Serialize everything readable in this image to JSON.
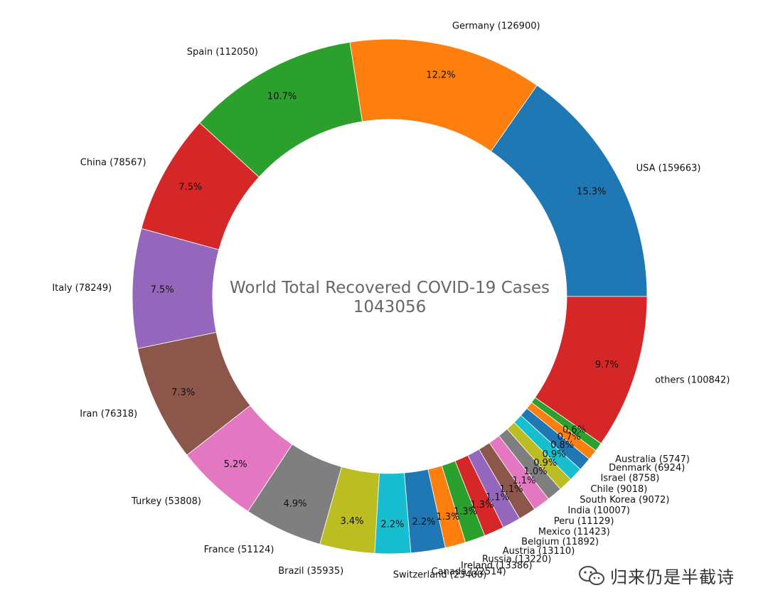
{
  "chart_data": {
    "type": "pie",
    "donut": true,
    "title": "World Total Recovered COVID-19 Cases",
    "center_value": "1043056",
    "slices": [
      {
        "name": "USA",
        "value": 159663,
        "label": "USA (159663)",
        "pct_label": "15.3%",
        "color": "#1f77b4"
      },
      {
        "name": "Germany",
        "value": 126900,
        "label": "Germany (126900)",
        "pct_label": "12.2%",
        "color": "#ff7f0e"
      },
      {
        "name": "Spain",
        "value": 112050,
        "label": "Spain (112050)",
        "pct_label": "10.7%",
        "color": "#2ca02c"
      },
      {
        "name": "China",
        "value": 78567,
        "label": "China (78567)",
        "pct_label": "7.5%",
        "color": "#d62728"
      },
      {
        "name": "Italy",
        "value": 78249,
        "label": "Italy (78249)",
        "pct_label": "7.5%",
        "color": "#9467bd"
      },
      {
        "name": "Iran",
        "value": 76318,
        "label": "Iran (76318)",
        "pct_label": "7.3%",
        "color": "#8c564b"
      },
      {
        "name": "Turkey",
        "value": 53808,
        "label": "Turkey (53808)",
        "pct_label": "5.2%",
        "color": "#e377c2"
      },
      {
        "name": "France",
        "value": 51124,
        "label": "France (51124)",
        "pct_label": "4.9%",
        "color": "#7f7f7f"
      },
      {
        "name": "Brazil",
        "value": 35935,
        "label": "Brazil (35935)",
        "pct_label": "3.4%",
        "color": "#bcbd22"
      },
      {
        "name": "Switzerland",
        "value": 23400,
        "label": "Switzerland (23400)",
        "pct_label": "2.2%",
        "color": "#17becf"
      },
      {
        "name": "Canada",
        "value": 22514,
        "label": "Canada (22514)",
        "pct_label": "2.2%",
        "color": "#1f77b4"
      },
      {
        "name": "Ireland",
        "value": 13386,
        "label": "Ireland (13386)",
        "pct_label": "1.3%",
        "color": "#ff7f0e"
      },
      {
        "name": "Russia",
        "value": 13220,
        "label": "Russia (13220)",
        "pct_label": "1.3%",
        "color": "#2ca02c"
      },
      {
        "name": "Austria",
        "value": 13110,
        "label": "Austria (13110)",
        "pct_label": "1.3%",
        "color": "#d62728"
      },
      {
        "name": "Belgium",
        "value": 11892,
        "label": "Belgium (11892)",
        "pct_label": "1.1%",
        "color": "#9467bd"
      },
      {
        "name": "Mexico",
        "value": 11423,
        "label": "Mexico (11423)",
        "pct_label": "1.1%",
        "color": "#8c564b"
      },
      {
        "name": "Peru",
        "value": 11129,
        "label": "Peru (11129)",
        "pct_label": "1.1%",
        "color": "#e377c2"
      },
      {
        "name": "India",
        "value": 10007,
        "label": "India (10007)",
        "pct_label": "1.0%",
        "color": "#7f7f7f"
      },
      {
        "name": "South Korea",
        "value": 9072,
        "label": "South Korea (9072)",
        "pct_label": "0.9%",
        "color": "#bcbd22"
      },
      {
        "name": "Chile",
        "value": 9018,
        "label": "Chile (9018)",
        "pct_label": "0.9%",
        "color": "#17becf"
      },
      {
        "name": "Israel",
        "value": 8758,
        "label": "Israel (8758)",
        "pct_label": "0.8%",
        "color": "#1f77b4"
      },
      {
        "name": "Denmark",
        "value": 6924,
        "label": "Denmark (6924)",
        "pct_label": "0.7%",
        "color": "#ff7f0e"
      },
      {
        "name": "Australia",
        "value": 5747,
        "label": "Australia (5747)",
        "pct_label": "0.6%",
        "color": "#2ca02c"
      },
      {
        "name": "others",
        "value": 100842,
        "label": "others (100842)",
        "pct_label": "9.7%",
        "color": "#d62728"
      }
    ]
  },
  "watermark": {
    "icon": "wechat-icon",
    "text": "归来仍是半截诗"
  }
}
